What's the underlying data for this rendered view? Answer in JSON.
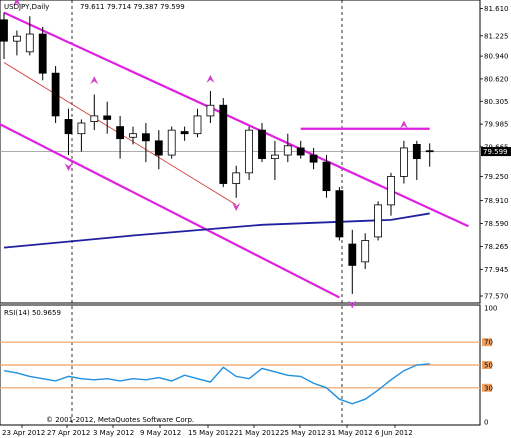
{
  "header": {
    "symbol_timeframe": "USDJPY,Daily",
    "ohlc": "79.611 79.714 79.387 79.599"
  },
  "rsi_header": "RSI(14) 50.9659",
  "copyright": "© 2001-2012, MetaQuotes Software Corp.",
  "current_price_label": "79.599",
  "price_axis": [
    "81.610",
    "81.225",
    "80.940",
    "80.620",
    "80.305",
    "79.985",
    "79.665",
    "79.250",
    "78.910",
    "78.590",
    "78.265",
    "77.945",
    "77.570"
  ],
  "rsi_axis": [
    "100",
    "70",
    "50",
    "30",
    "0"
  ],
  "date_axis": [
    "23 Apr 2012",
    "27 Apr 2012",
    "3 May 2012",
    "9 May 2012",
    "15 May 2012",
    "21 May 2012",
    "25 May 2012",
    "31 May 2012",
    "6 Jun 2012"
  ],
  "chart_data": [
    {
      "type": "candlestick",
      "title": "USDJPY,Daily",
      "ylim": [
        77.5,
        81.7
      ],
      "candles": [
        {
          "open": 81.45,
          "high": 81.55,
          "low": 80.9,
          "close": 81.15
        },
        {
          "open": 81.15,
          "high": 81.3,
          "low": 80.95,
          "close": 81.22
        },
        {
          "open": 81.0,
          "high": 81.5,
          "low": 80.95,
          "close": 81.25
        },
        {
          "open": 81.25,
          "high": 81.35,
          "low": 80.6,
          "close": 80.7
        },
        {
          "open": 80.7,
          "high": 80.8,
          "low": 80.0,
          "close": 80.1
        },
        {
          "open": 80.05,
          "high": 80.2,
          "low": 79.55,
          "close": 79.85
        },
        {
          "open": 79.85,
          "high": 80.05,
          "low": 79.6,
          "close": 80.0
        },
        {
          "open": 80.02,
          "high": 80.4,
          "low": 79.9,
          "close": 80.1
        },
        {
          "open": 80.1,
          "high": 80.3,
          "low": 79.85,
          "close": 80.05
        },
        {
          "open": 79.95,
          "high": 80.1,
          "low": 79.5,
          "close": 79.78
        },
        {
          "open": 79.8,
          "high": 79.95,
          "low": 79.7,
          "close": 79.85
        },
        {
          "open": 79.85,
          "high": 80.0,
          "low": 79.45,
          "close": 79.75
        },
        {
          "open": 79.75,
          "high": 79.9,
          "low": 79.35,
          "close": 79.55
        },
        {
          "open": 79.55,
          "high": 79.95,
          "low": 79.5,
          "close": 79.9
        },
        {
          "open": 79.88,
          "high": 79.95,
          "low": 79.75,
          "close": 79.85
        },
        {
          "open": 79.85,
          "high": 80.2,
          "low": 79.8,
          "close": 80.1
        },
        {
          "open": 80.1,
          "high": 80.45,
          "low": 80.0,
          "close": 80.25
        },
        {
          "open": 80.25,
          "high": 80.35,
          "low": 79.1,
          "close": 79.15
        },
        {
          "open": 79.15,
          "high": 79.4,
          "low": 78.95,
          "close": 79.3
        },
        {
          "open": 79.3,
          "high": 79.95,
          "low": 79.2,
          "close": 79.9
        },
        {
          "open": 79.9,
          "high": 80.0,
          "low": 79.45,
          "close": 79.5
        },
        {
          "open": 79.5,
          "high": 79.75,
          "low": 79.2,
          "close": 79.55
        },
        {
          "open": 79.55,
          "high": 79.85,
          "low": 79.45,
          "close": 79.68
        },
        {
          "open": 79.65,
          "high": 79.75,
          "low": 79.5,
          "close": 79.55
        },
        {
          "open": 79.55,
          "high": 79.65,
          "low": 79.35,
          "close": 79.45
        },
        {
          "open": 79.45,
          "high": 79.55,
          "low": 78.95,
          "close": 79.05
        },
        {
          "open": 79.05,
          "high": 79.1,
          "low": 78.35,
          "close": 78.4
        },
        {
          "open": 78.3,
          "high": 78.5,
          "low": 77.6,
          "close": 78.0
        },
        {
          "open": 78.05,
          "high": 78.45,
          "low": 77.95,
          "close": 78.35
        },
        {
          "open": 78.4,
          "high": 78.9,
          "low": 78.35,
          "close": 78.85
        },
        {
          "open": 78.85,
          "high": 79.3,
          "low": 78.7,
          "close": 79.25
        },
        {
          "open": 79.25,
          "high": 79.75,
          "low": 79.15,
          "close": 79.65
        },
        {
          "open": 79.7,
          "high": 79.75,
          "low": 79.2,
          "close": 79.5
        },
        {
          "open": 79.611,
          "high": 79.714,
          "low": 79.387,
          "close": 79.599
        }
      ],
      "moving_average": [
        {
          "i": 0,
          "v": 78.25
        },
        {
          "i": 10,
          "v": 78.42
        },
        {
          "i": 20,
          "v": 78.57
        },
        {
          "i": 30,
          "v": 78.64
        },
        {
          "i": 33,
          "v": 78.73
        }
      ],
      "trendlines": [
        {
          "from": [
            0,
            81.55
          ],
          "to": [
            36,
            78.55
          ]
        },
        {
          "from": [
            -0.5,
            80.0
          ],
          "to": [
            26,
            77.55
          ]
        },
        {
          "from": [
            0,
            80.85
          ],
          "to": [
            18,
            78.85
          ]
        },
        {
          "from": [
            23,
            79.92
          ],
          "to": [
            33,
            79.92
          ]
        }
      ],
      "fractals": [
        {
          "i": 1,
          "v": 81.7,
          "dir": "up"
        },
        {
          "i": 7,
          "v": 80.6,
          "dir": "up"
        },
        {
          "i": 16,
          "v": 80.62,
          "dir": "up"
        },
        {
          "i": 31,
          "v": 79.98,
          "dir": "up"
        },
        {
          "i": 5,
          "v": 79.38,
          "dir": "down"
        },
        {
          "i": 18,
          "v": 78.82,
          "dir": "down"
        },
        {
          "i": 27,
          "v": 77.45,
          "dir": "down"
        }
      ],
      "current_price": 79.599
    },
    {
      "type": "line",
      "title": "RSI(14) 50.9659",
      "ylim": [
        0,
        100
      ],
      "levels": [
        70,
        50,
        30
      ],
      "values": [
        45,
        43,
        40,
        38,
        36,
        40,
        38,
        37,
        38,
        36,
        38,
        37,
        39,
        36,
        41,
        38,
        35,
        48,
        40,
        38,
        47,
        44,
        41,
        40,
        34,
        30,
        20,
        16,
        20,
        28,
        37,
        45,
        50,
        51
      ]
    }
  ]
}
